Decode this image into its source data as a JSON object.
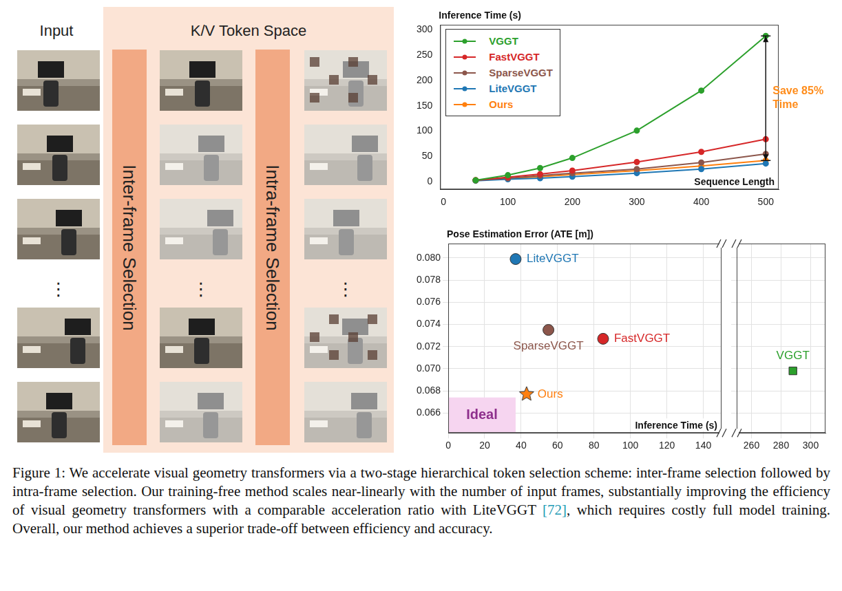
{
  "diagram": {
    "input_title": "Input",
    "space_title": "K/V Token Space",
    "stages": [
      "Inter-frame Selection",
      "Intra-frame Selection"
    ],
    "ellipsis": "⋮"
  },
  "chart_data": [
    {
      "type": "line",
      "title": "Inference Time (s)",
      "x_label": "Sequence Length",
      "x": [
        50,
        100,
        150,
        200,
        300,
        400,
        500
      ],
      "series": [
        {
          "name": "VGGT",
          "color": "#2ca02c",
          "values": [
            3,
            13,
            27,
            47,
            101,
            180,
            288
          ]
        },
        {
          "name": "FastVGGT",
          "color": "#d62728",
          "values": [
            3,
            9,
            15,
            22,
            39,
            59,
            84
          ]
        },
        {
          "name": "SparseVGGT",
          "color": "#8c564b",
          "values": [
            3,
            7,
            12,
            17,
            25,
            38,
            55
          ]
        },
        {
          "name": "LiteVGGT",
          "color": "#1f77b4",
          "values": [
            2,
            5,
            7,
            10,
            17,
            25,
            36
          ]
        },
        {
          "name": "Ours",
          "color": "#ff7f0e",
          "values": [
            3,
            6,
            10,
            14,
            22,
            31,
            42
          ]
        }
      ],
      "xlim": [
        -5,
        520
      ],
      "xticks": [
        0,
        100,
        200,
        300,
        400,
        500
      ],
      "ylim": [
        -15,
        310
      ],
      "yticks": [
        0,
        50,
        100,
        150,
        200,
        250,
        300
      ],
      "grid": false,
      "legend": "top-left",
      "marker": "circle",
      "annotation": {
        "text": [
          "Save 85%",
          "Time"
        ],
        "color": "#ff8c1a",
        "x": 500,
        "from": 288,
        "to": 42
      }
    },
    {
      "type": "scatter",
      "title": "Pose Estimation Error (ATE [m])",
      "x_label": "Inference Time (s)",
      "series": [
        {
          "name": "LiteVGGT",
          "color": "#1f77b4",
          "marker": "circle",
          "x": [
            37
          ],
          "values": [
            0.0799
          ]
        },
        {
          "name": "SparseVGGT",
          "color": "#8c564b",
          "marker": "circle",
          "x": [
            55
          ],
          "values": [
            0.0735
          ]
        },
        {
          "name": "FastVGGT",
          "color": "#d62728",
          "marker": "circle",
          "x": [
            85
          ],
          "values": [
            0.0727
          ]
        },
        {
          "name": "Ours",
          "color": "#ff7f0e",
          "marker": "star",
          "x": [
            43
          ],
          "values": [
            0.0677
          ]
        },
        {
          "name": "VGGT",
          "color": "#2ca02c",
          "marker": "square",
          "x": [
            288
          ],
          "values": [
            0.0698
          ]
        }
      ],
      "x_segments": [
        {
          "xlim": [
            0,
            150
          ],
          "xticks": [
            0,
            20,
            40,
            60,
            80,
            100,
            120,
            140
          ]
        },
        {
          "xlim": [
            250,
            310
          ],
          "xticks": [
            260,
            280,
            300
          ]
        }
      ],
      "ylim": [
        0.0642,
        0.0813
      ],
      "yticks": [
        0.066,
        0.068,
        {
          "value": 0.07,
          "label": "0.070"
        },
        0.072,
        0.074,
        0.076,
        0.078,
        {
          "value": 0.08,
          "label": "0.080"
        }
      ],
      "grid": true,
      "region": {
        "label": "Ideal",
        "x": [
          0,
          37
        ],
        "y": [
          0.0642,
          0.0674
        ],
        "color": "#f6d5f0"
      }
    }
  ],
  "caption": "Figure 1: We accelerate visual geometry transformers via a two-stage hierarchical token selection scheme: inter-frame selection followed by intra-frame selection. Our training-free method scales near-linearly with the number of input frames, substantially improving the efficiency of visual geometry transformers with a comparable acceleration ratio with LiteVGGT [72], which requires costly full model training. Overall, our method achieves a superior trade-off between efficiency and accuracy."
}
